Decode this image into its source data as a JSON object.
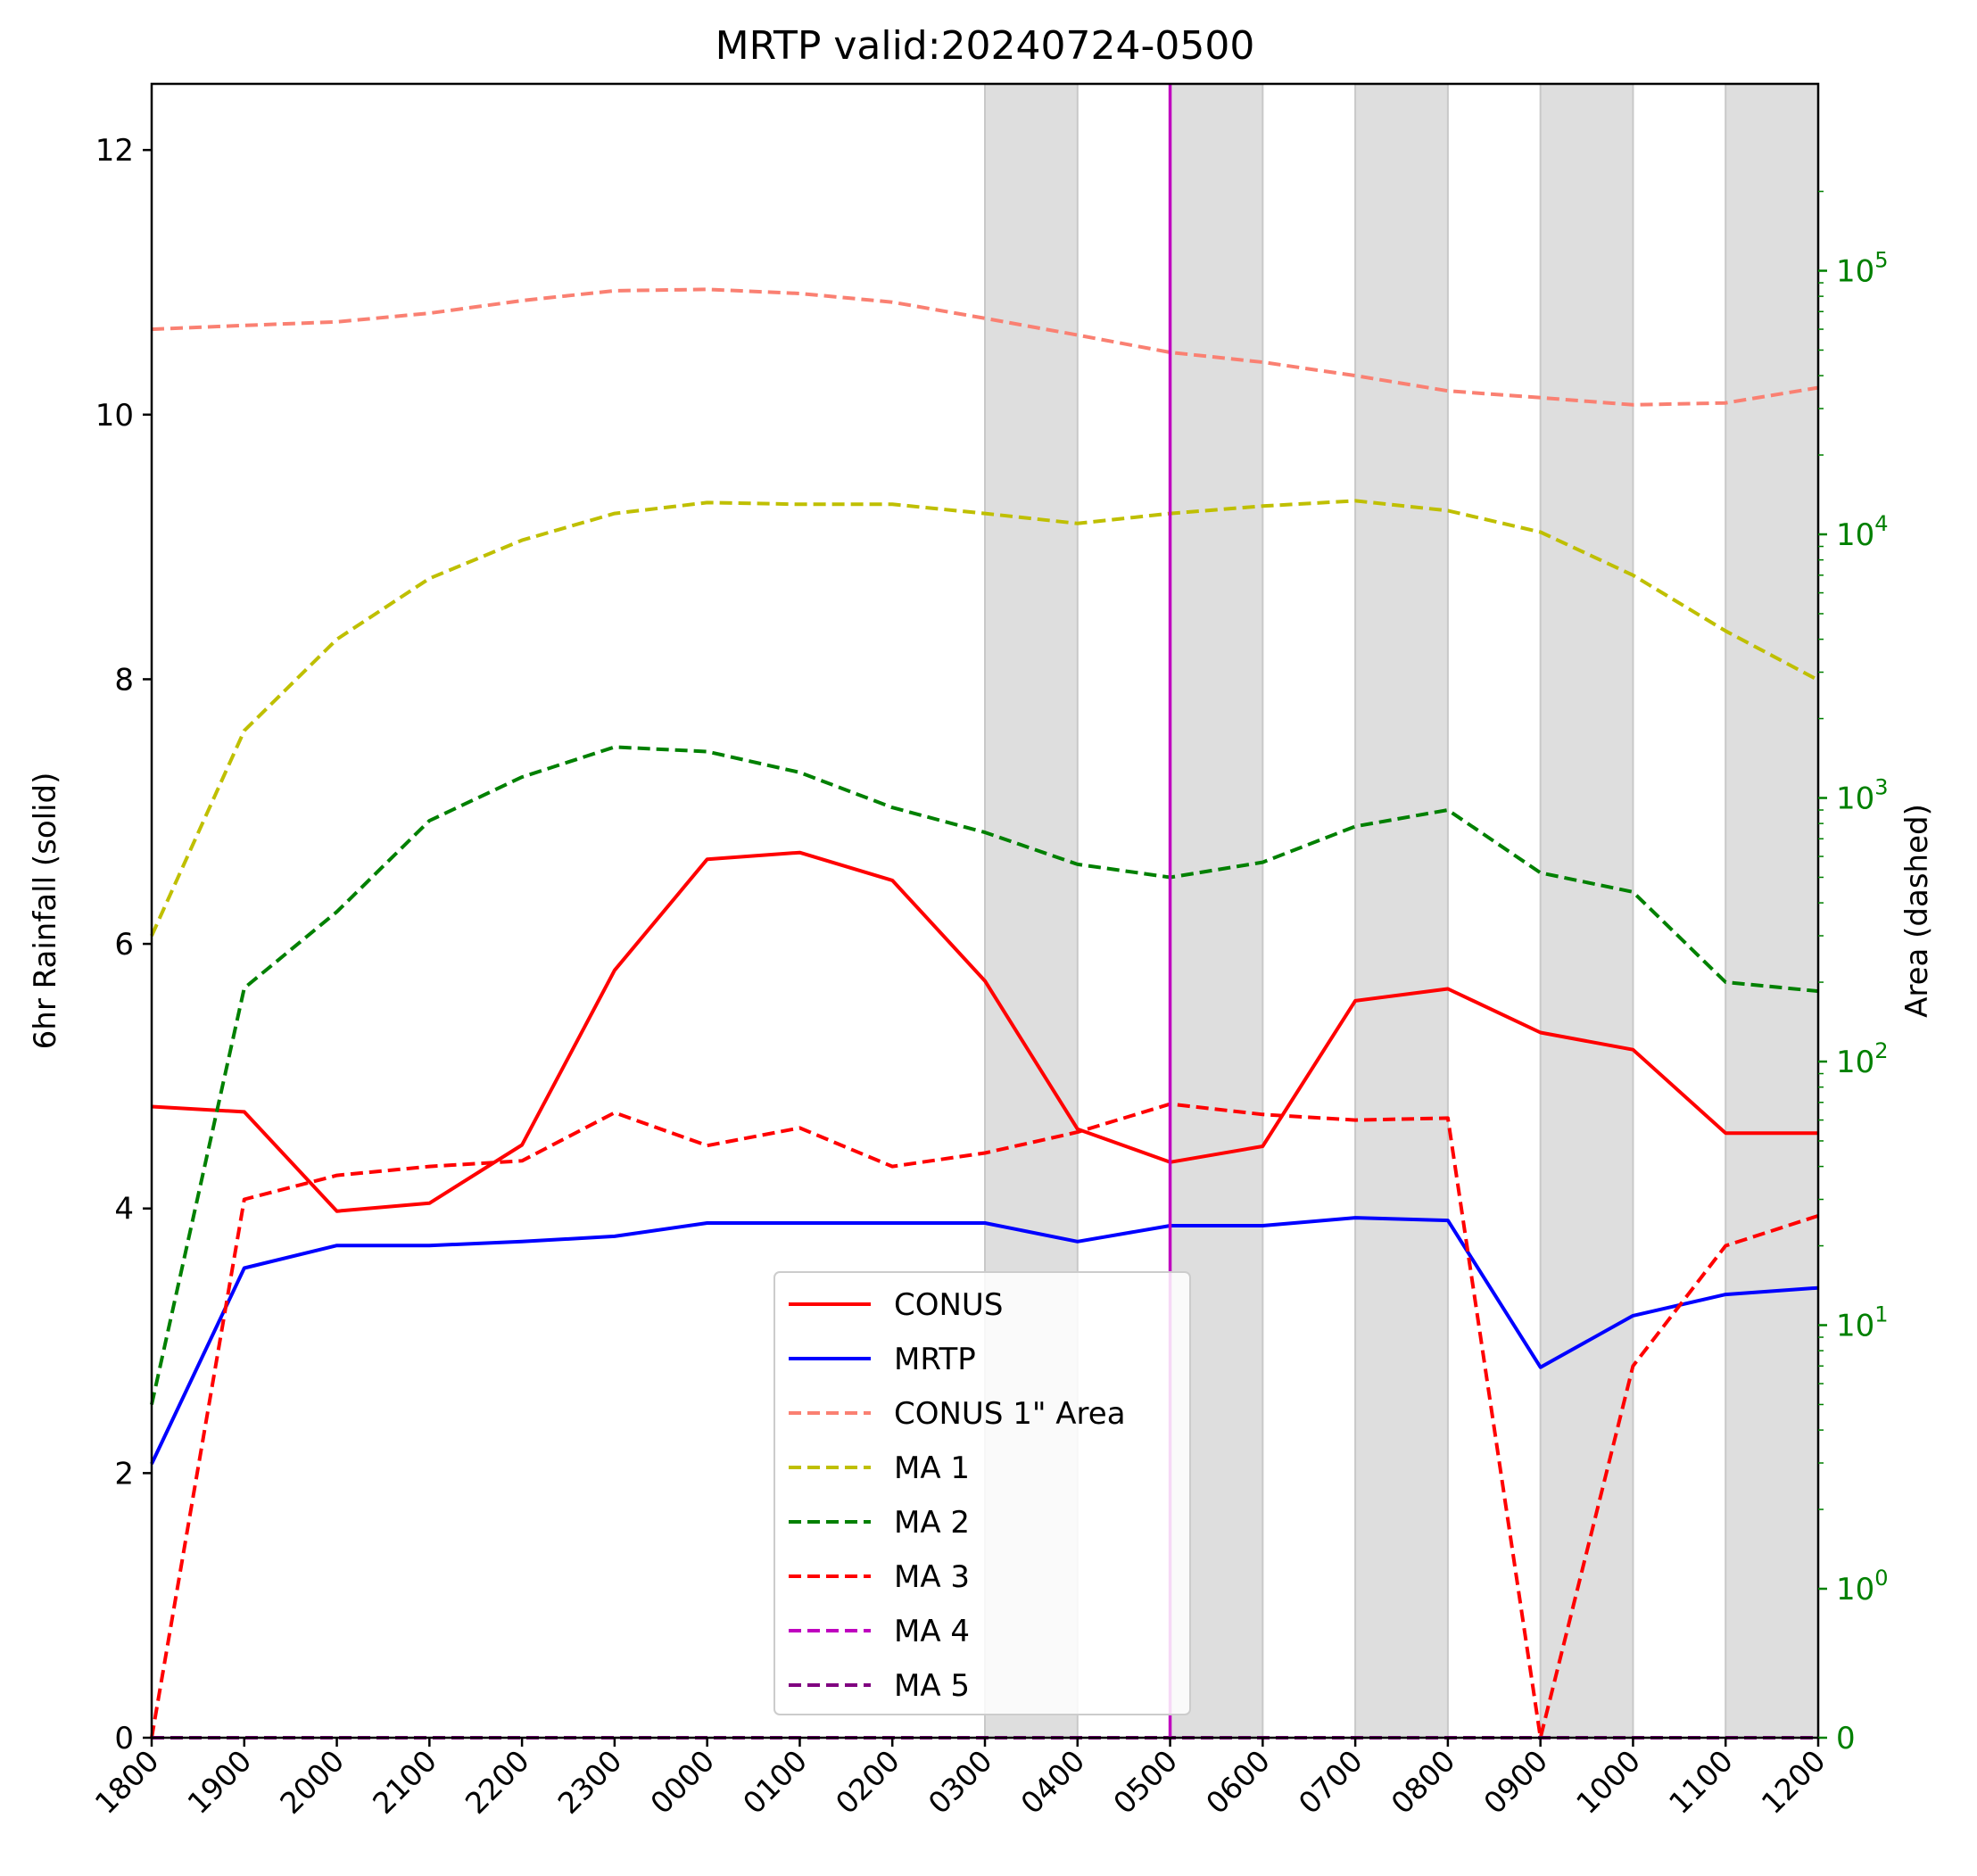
{
  "chart_data": {
    "type": "line",
    "title": "MRTP valid:20240724-0500",
    "xlabel": "",
    "ylabel_left": "6hr Rainfall (solid)",
    "ylabel_right": "Area (dashed)",
    "x": [
      "1800",
      "1900",
      "2000",
      "2100",
      "2200",
      "2300",
      "0000",
      "0100",
      "0200",
      "0300",
      "0400",
      "0500",
      "0600",
      "0700",
      "0800",
      "0900",
      "1000",
      "1100",
      "1200"
    ],
    "ylim_left": [
      0,
      12.5
    ],
    "yticks_left": [
      "0",
      "2",
      "4",
      "6",
      "8",
      "10",
      "12"
    ],
    "yscale_right": "symlog",
    "yticks_right": [
      {
        "value": 0,
        "base": "0",
        "exp": ""
      },
      {
        "value": 1,
        "base": "10",
        "exp": "0"
      },
      {
        "value": 10,
        "base": "10",
        "exp": "1"
      },
      {
        "value": 100,
        "base": "10",
        "exp": "2"
      },
      {
        "value": 1000,
        "base": "10",
        "exp": "3"
      },
      {
        "value": 10000,
        "base": "10",
        "exp": "4"
      },
      {
        "value": 100000,
        "base": "10",
        "exp": "5"
      }
    ],
    "valid_time": "0500",
    "valid_line_color": "#bf00bf",
    "shaded_intervals": [
      [
        "0300",
        "0400"
      ],
      [
        "0500",
        "0600"
      ],
      [
        "0700",
        "0800"
      ],
      [
        "0900",
        "1000"
      ],
      [
        "1100",
        "1200"
      ]
    ],
    "shade_color": "#dedede",
    "grid": false,
    "legend_position": "lower center",
    "series": [
      {
        "name": "CONUS",
        "axis": "left",
        "style": "solid",
        "color": "#ff0000",
        "values": [
          4.77,
          4.73,
          3.98,
          4.04,
          4.48,
          5.8,
          6.64,
          6.69,
          6.48,
          5.72,
          4.6,
          4.35,
          4.47,
          5.57,
          5.66,
          5.33,
          5.2,
          4.57,
          4.57
        ]
      },
      {
        "name": "MRTP",
        "axis": "left",
        "style": "solid",
        "color": "#0000ff",
        "values": [
          2.07,
          3.55,
          3.72,
          3.72,
          3.75,
          3.79,
          3.89,
          3.89,
          3.89,
          3.89,
          3.75,
          3.87,
          3.87,
          3.93,
          3.91,
          2.8,
          3.19,
          3.35,
          3.4
        ]
      },
      {
        "name": "CONUS 1\" Area",
        "axis": "right",
        "style": "dashed",
        "color": "#fa8072",
        "values": [
          60000,
          62000,
          64000,
          69000,
          77000,
          84000,
          85000,
          82000,
          76000,
          66000,
          57000,
          49000,
          45000,
          40000,
          35000,
          33000,
          31000,
          31500,
          36000
        ]
      },
      {
        "name": "MA 1",
        "axis": "right",
        "style": "dashed",
        "color": "#bfbf00",
        "values": [
          300,
          1800,
          4000,
          6800,
          9500,
          12000,
          13200,
          13000,
          13000,
          12000,
          11000,
          12000,
          12800,
          13400,
          12300,
          10200,
          7000,
          4300,
          2800
        ]
      },
      {
        "name": "MA 2",
        "axis": "right",
        "style": "dashed",
        "color": "#008000",
        "values": [
          5,
          190,
          370,
          820,
          1200,
          1560,
          1500,
          1250,
          920,
          740,
          560,
          500,
          570,
          780,
          900,
          520,
          440,
          200,
          185
        ]
      },
      {
        "name": "MA 3",
        "axis": "right",
        "style": "dashed",
        "color": "#ff0000",
        "values": [
          0,
          30,
          37,
          40,
          42,
          64,
          48,
          56,
          40,
          45,
          54,
          69,
          63,
          60,
          61,
          0,
          7,
          20,
          26
        ]
      },
      {
        "name": "MA 4",
        "axis": "right",
        "style": "dashed",
        "color": "#bf00bf",
        "values": [
          0,
          0,
          0,
          0,
          0,
          0,
          0,
          0,
          0,
          0,
          0,
          0,
          0,
          0,
          0,
          0,
          0,
          0,
          0
        ]
      },
      {
        "name": "MA 5",
        "axis": "right",
        "style": "dashed",
        "color": "#800080",
        "values": [
          0,
          0,
          0,
          0,
          0,
          0,
          0,
          0,
          0,
          0,
          0,
          0,
          0,
          0,
          0,
          0,
          0,
          0,
          0
        ]
      }
    ]
  }
}
